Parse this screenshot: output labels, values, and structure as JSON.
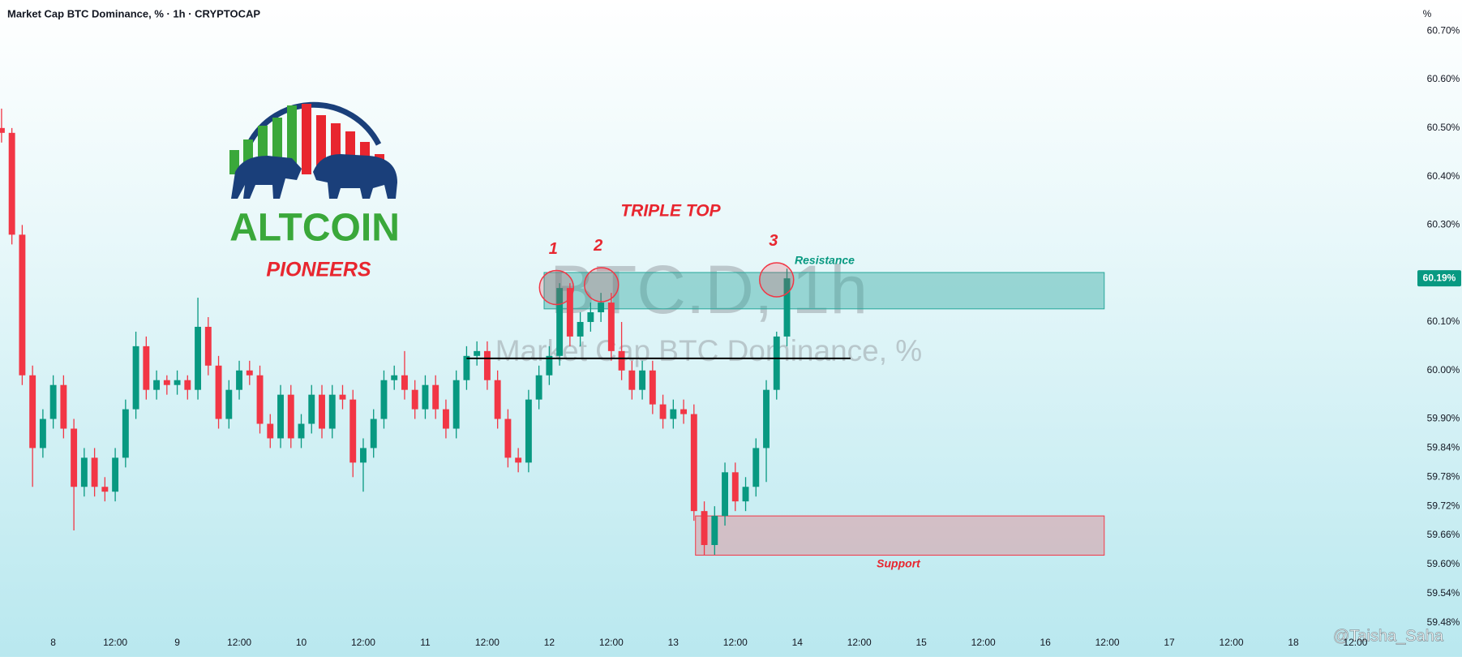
{
  "chart_data": {
    "type": "candlestick",
    "title": "Market Cap BTC Dominance, % · 1h · CRYPTOCAP",
    "axis_unit": "%",
    "watermark": "BTC.D, 1h",
    "watermark_subtitle": "Market Cap BTC Dominance, %",
    "pattern_label": "TRIPLE TOP",
    "logo_title": "ALTCOIN",
    "logo_subtitle": "PIONEERS",
    "author": "@Taisha_Saha",
    "up_color": "#089981",
    "down_color": "#f23645",
    "grid": false,
    "xlim": [
      -10.3,
      260.4
    ],
    "ylim": [
      59.456,
      60.764
    ],
    "xticks": [
      {
        "value": 0,
        "label": "8"
      },
      {
        "value": 12,
        "label": "12:00"
      },
      {
        "value": 24,
        "label": "9"
      },
      {
        "value": 36,
        "label": "12:00"
      },
      {
        "value": 48,
        "label": "10"
      },
      {
        "value": 60,
        "label": "12:00"
      },
      {
        "value": 72,
        "label": "11"
      },
      {
        "value": 84,
        "label": "12:00"
      },
      {
        "value": 96,
        "label": "12"
      },
      {
        "value": 108,
        "label": "12:00"
      },
      {
        "value": 120,
        "label": "13"
      },
      {
        "value": 132,
        "label": "12:00"
      },
      {
        "value": 144,
        "label": "14"
      },
      {
        "value": 156,
        "label": "12:00"
      },
      {
        "value": 168,
        "label": "15"
      },
      {
        "value": 180,
        "label": "12:00"
      },
      {
        "value": 192,
        "label": "16"
      },
      {
        "value": 204,
        "label": "12:00"
      },
      {
        "value": 216,
        "label": "17"
      },
      {
        "value": 228,
        "label": "12:00"
      },
      {
        "value": 240,
        "label": "18"
      },
      {
        "value": 252,
        "label": "12:00"
      }
    ],
    "yticks": [
      {
        "value": 60.7,
        "label": "60.70%"
      },
      {
        "value": 60.6,
        "label": "60.60%"
      },
      {
        "value": 60.5,
        "label": "60.50%"
      },
      {
        "value": 60.4,
        "label": "60.40%"
      },
      {
        "value": 60.3,
        "label": "60.30%"
      },
      {
        "value": 60.1,
        "label": "60.10%"
      },
      {
        "value": 60.0,
        "label": "60.00%"
      },
      {
        "value": 59.9,
        "label": "59.90%"
      },
      {
        "value": 59.84,
        "label": "59.84%"
      },
      {
        "value": 59.78,
        "label": "59.78%"
      },
      {
        "value": 59.72,
        "label": "59.72%"
      },
      {
        "value": 59.66,
        "label": "59.66%"
      },
      {
        "value": 59.6,
        "label": "59.60%"
      },
      {
        "value": 59.54,
        "label": "59.54%"
      },
      {
        "value": 59.48,
        "label": "59.48%"
      }
    ],
    "last_price": {
      "value": 60.19,
      "label": "60.19%"
    },
    "x": [
      -10,
      -8,
      -6,
      -4,
      -2,
      0,
      2,
      4,
      6,
      8,
      10,
      12,
      14,
      16,
      18,
      20,
      22,
      24,
      26,
      28,
      30,
      32,
      34,
      36,
      38,
      40,
      42,
      44,
      46,
      48,
      50,
      52,
      54,
      56,
      58,
      60,
      62,
      64,
      66,
      68,
      70,
      72,
      74,
      76,
      78,
      80,
      82,
      84,
      86,
      88,
      90,
      92,
      94,
      96,
      98,
      100,
      102,
      104,
      106,
      108,
      110,
      112,
      114,
      116,
      118,
      120,
      122,
      124,
      126,
      128,
      130,
      132,
      134,
      136,
      138,
      140,
      142
    ],
    "open": [
      60.5,
      60.49,
      60.28,
      59.99,
      59.84,
      59.9,
      59.97,
      59.88,
      59.76,
      59.82,
      59.76,
      59.75,
      59.82,
      59.92,
      60.05,
      59.96,
      59.98,
      59.97,
      59.98,
      59.96,
      60.09,
      60.01,
      59.9,
      59.96,
      60.0,
      59.99,
      59.89,
      59.86,
      59.95,
      59.86,
      59.89,
      59.95,
      59.88,
      59.95,
      59.94,
      59.81,
      59.84,
      59.9,
      59.98,
      59.99,
      59.96,
      59.92,
      59.97,
      59.92,
      59.88,
      59.98,
      60.03,
      60.04,
      59.98,
      59.9,
      59.82,
      59.81,
      59.94,
      59.99,
      60.03,
      60.17,
      60.07,
      60.1,
      60.12,
      60.14,
      60.04,
      60.0,
      59.96,
      60.0,
      59.93,
      59.9,
      59.92,
      59.91,
      59.71,
      59.64,
      59.7,
      59.79,
      59.73,
      59.76,
      59.84,
      59.96,
      60.07
    ],
    "high": [
      60.54,
      60.5,
      60.3,
      60.01,
      59.92,
      59.99,
      59.99,
      59.9,
      59.84,
      59.84,
      59.78,
      59.84,
      59.94,
      60.08,
      60.07,
      60.0,
      59.99,
      60.0,
      59.99,
      60.15,
      60.11,
      60.03,
      59.98,
      60.02,
      60.02,
      60.01,
      59.91,
      59.97,
      59.97,
      59.91,
      59.97,
      59.97,
      59.97,
      59.97,
      59.96,
      59.86,
      59.92,
      60.0,
      60.01,
      60.04,
      59.98,
      59.99,
      59.99,
      59.94,
      60.0,
      60.05,
      60.06,
      60.06,
      60.0,
      59.92,
      59.84,
      59.96,
      60.01,
      60.05,
      60.18,
      60.18,
      60.12,
      60.14,
      60.16,
      60.16,
      60.1,
      60.02,
      60.02,
      60.02,
      59.95,
      59.94,
      59.94,
      59.93,
      59.73,
      59.72,
      59.81,
      59.81,
      59.78,
      59.86,
      59.98,
      60.08,
      60.21
    ],
    "low": [
      60.47,
      60.26,
      59.97,
      59.76,
      59.82,
      59.88,
      59.86,
      59.67,
      59.74,
      59.74,
      59.73,
      59.73,
      59.8,
      59.9,
      59.94,
      59.94,
      59.95,
      59.95,
      59.94,
      59.94,
      59.99,
      59.88,
      59.88,
      59.94,
      59.97,
      59.87,
      59.84,
      59.84,
      59.84,
      59.84,
      59.87,
      59.86,
      59.86,
      59.92,
      59.78,
      59.75,
      59.82,
      59.88,
      59.96,
      59.94,
      59.9,
      59.9,
      59.9,
      59.86,
      59.86,
      59.96,
      60.01,
      59.96,
      59.88,
      59.8,
      59.79,
      59.79,
      59.92,
      59.97,
      60.01,
      60.05,
      60.05,
      60.08,
      60.1,
      60.02,
      59.98,
      59.94,
      59.94,
      59.91,
      59.88,
      59.88,
      59.89,
      59.69,
      59.62,
      59.62,
      59.68,
      59.71,
      59.71,
      59.74,
      59.77,
      59.94,
      60.05
    ],
    "close": [
      60.49,
      60.28,
      59.99,
      59.84,
      59.9,
      59.97,
      59.88,
      59.76,
      59.82,
      59.76,
      59.75,
      59.82,
      59.92,
      60.05,
      59.96,
      59.98,
      59.97,
      59.98,
      59.96,
      60.09,
      60.01,
      59.9,
      59.96,
      60.0,
      59.99,
      59.89,
      59.86,
      59.95,
      59.86,
      59.89,
      59.95,
      59.88,
      59.95,
      59.94,
      59.81,
      59.84,
      59.9,
      59.98,
      59.99,
      59.96,
      59.92,
      59.97,
      59.92,
      59.88,
      59.98,
      60.03,
      60.04,
      59.98,
      59.9,
      59.82,
      59.81,
      59.94,
      59.99,
      60.03,
      60.17,
      60.07,
      60.1,
      60.12,
      60.14,
      60.04,
      60.0,
      59.96,
      60.0,
      59.93,
      59.9,
      59.92,
      59.91,
      59.71,
      59.64,
      59.7,
      59.79,
      59.73,
      59.76,
      59.84,
      59.96,
      60.07,
      60.19
    ],
    "zones": [
      {
        "label": "Resistance",
        "x": [
          95,
          203.4
        ],
        "y": [
          60.127,
          60.202
        ],
        "color": "#26a69a"
      },
      {
        "label": "Support",
        "x": [
          124.3,
          203.4
        ],
        "y": [
          59.619,
          59.7
        ],
        "color": "#f23645"
      }
    ],
    "lines": [
      {
        "x": [
          80,
          154.3
        ],
        "y": 60.025,
        "color": "#000000"
      }
    ],
    "markers": [
      {
        "label": "1",
        "x": 97.4,
        "y": 60.171
      },
      {
        "label": "2",
        "x": 106.1,
        "y": 60.177
      },
      {
        "label": "3",
        "x": 140.0,
        "y": 60.187
      }
    ]
  }
}
